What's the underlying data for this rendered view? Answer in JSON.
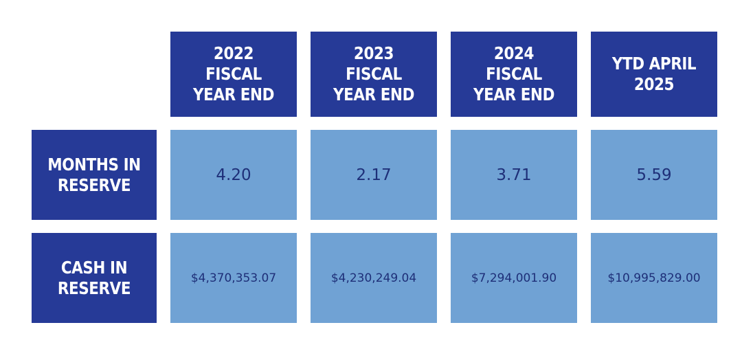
{
  "columns": [
    "2022 FISCAL YEAR END",
    "2023 FISCAL YEAR END",
    "2024 FISCAL YEAR END",
    "YTD APRIL 2025"
  ],
  "rows": [
    {
      "label": "MONTHS IN RESERVE",
      "values": [
        "4.20",
        "2.17",
        "3.71",
        "5.59"
      ]
    },
    {
      "label": "CASH IN RESERVE",
      "values": [
        "$4,370,353.07",
        "$4,230,249.04",
        "$7,294,001.90",
        "$10,995,829.00"
      ]
    }
  ],
  "colors": {
    "header_bg": "#263a97",
    "header_text": "#ffffff",
    "cell_bg": "#70a2d4",
    "cell_text": "#1e2f78",
    "background": "#ffffff"
  },
  "chart_data": {
    "type": "table",
    "columns": [
      "2022 FISCAL YEAR END",
      "2023 FISCAL YEAR END",
      "2024 FISCAL YEAR END",
      "YTD APRIL 2025"
    ],
    "rows": [
      {
        "label": "MONTHS IN RESERVE",
        "values": [
          4.2,
          2.17,
          3.71,
          5.59
        ]
      },
      {
        "label": "CASH IN RESERVE",
        "values": [
          4370353.07,
          4230249.04,
          7294001.9,
          10995829.0
        ]
      }
    ]
  }
}
